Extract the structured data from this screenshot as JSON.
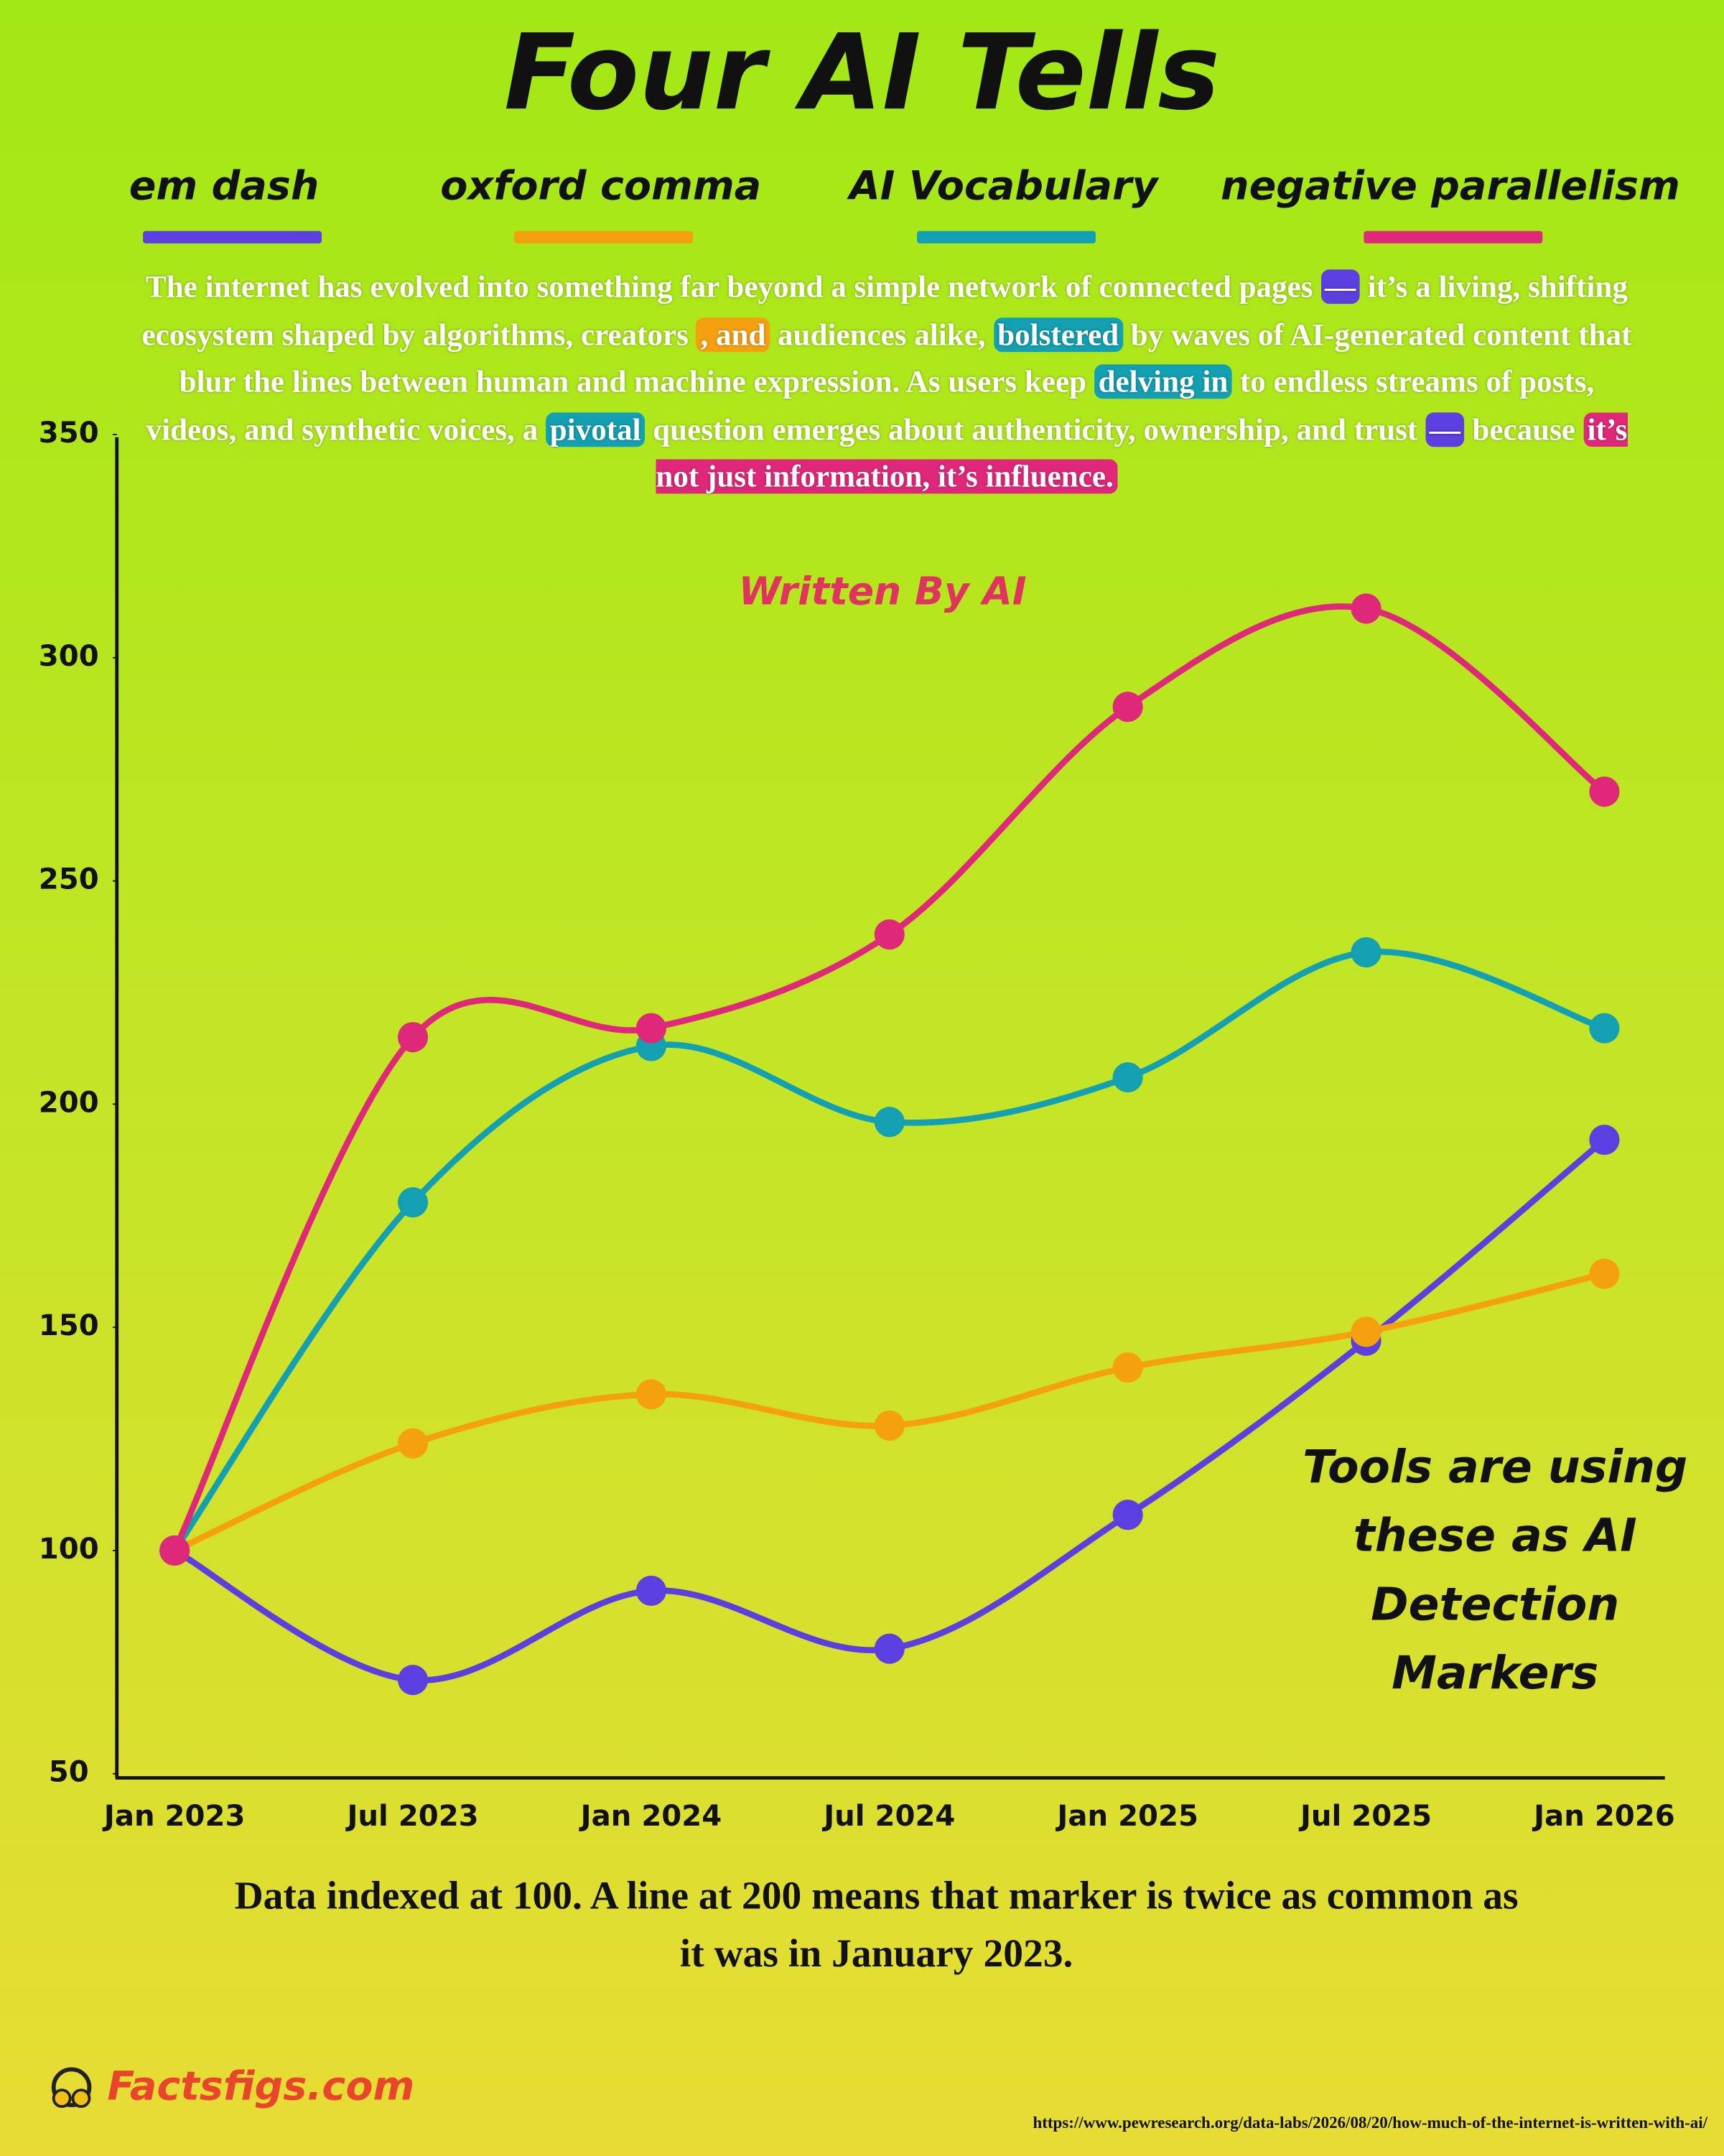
{
  "chart_data": {
    "type": "line",
    "title": "Four AI Tells",
    "subtitle": "Written By AI",
    "annotation": "Tools are using these as AI Detection Markers",
    "caption": "Data indexed at 100. A line at 200 means that marker is twice as common as it was in January 2023.",
    "categories": [
      "Jan 2023",
      "Jul 2023",
      "Jan 2024",
      "Jul 2024",
      "Jan 2025",
      "Jul 2025",
      "Jan 2026"
    ],
    "series": [
      {
        "name": "em dash",
        "color": "#5b3fe0",
        "values": [
          100,
          71,
          91,
          78,
          108,
          147,
          192
        ]
      },
      {
        "name": "oxford comma",
        "color": "#f5a00f",
        "values": [
          100,
          124,
          135,
          128,
          141,
          149,
          162
        ]
      },
      {
        "name": "AI Vocabulary",
        "color": "#12a0b2",
        "values": [
          100,
          178,
          213,
          196,
          206,
          234,
          217
        ]
      },
      {
        "name": "negative parallelism",
        "color": "#e0287a",
        "values": [
          100,
          215,
          217,
          238,
          289,
          311,
          270
        ]
      }
    ],
    "ylim": [
      50,
      350
    ],
    "yticks": [
      50,
      100,
      150,
      200,
      250,
      300,
      350
    ],
    "grid": false
  },
  "paragraph": [
    {
      "text": "The internet has evolved into something far beyond a simple network of connected pages"
    },
    {
      "text": "—",
      "highlight": "#5b3fe0"
    },
    {
      "text": "it’s a living, shifting ecosystem shaped by algorithms, creators"
    },
    {
      "text": ", and",
      "highlight": "#f5a00f"
    },
    {
      "text": "audiences alike,"
    },
    {
      "text": "bolstered",
      "highlight": "#12a0b2"
    },
    {
      "text": "by waves of AI-generated content that blur the lines between human and machine expression. As users keep"
    },
    {
      "text": "delving in",
      "highlight": "#12a0b2"
    },
    {
      "text": "to endless streams of posts, videos, and synthetic voices, a"
    },
    {
      "text": "pivotal",
      "highlight": "#12a0b2"
    },
    {
      "text": "question emerges about authenticity, ownership, and trust"
    },
    {
      "text": "—",
      "highlight": "#5b3fe0"
    },
    {
      "text": "because"
    },
    {
      "text": "it’s not just information, it’s influence.",
      "highlight": "#e0287a"
    }
  ],
  "brand": "Factsfigs.com",
  "source": "https://www.pewresearch.org/data-labs/2026/08/20/how-much-of-the-internet-is-written-with-ai/"
}
